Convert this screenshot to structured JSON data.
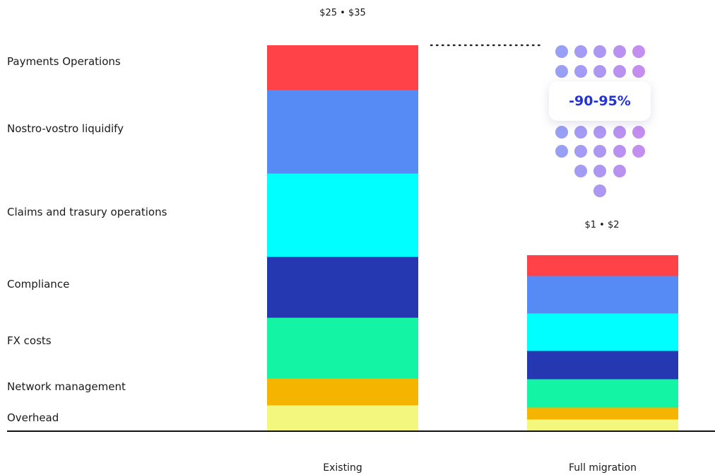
{
  "chart_data": {
    "type": "bar",
    "stacked": true,
    "categories": [
      "Existing",
      "Full migration"
    ],
    "segment_labels": [
      "Payments Operations",
      "Nostro-vostro liquidify",
      "Claims and trasury operations",
      "Compliance",
      "FX costs",
      "Network management",
      "Overhead"
    ],
    "series": [
      {
        "name": "Overhead",
        "color": "#f3f77e",
        "values": [
          37,
          17
        ]
      },
      {
        "name": "Network management",
        "color": "#f4b400",
        "values": [
          38,
          17
        ]
      },
      {
        "name": "FX costs",
        "color": "#13f5a5",
        "values": [
          86,
          40
        ]
      },
      {
        "name": "Compliance",
        "color": "#2637b2",
        "values": [
          86,
          40
        ]
      },
      {
        "name": "Claims and trasury operations",
        "color": "#00ffff",
        "values": [
          118,
          53
        ]
      },
      {
        "name": "Nostro-vostro liquidify",
        "color": "#568bf5",
        "values": [
          118,
          53
        ]
      },
      {
        "name": "Payments Operations",
        "color": "#ff4148",
        "values": [
          63,
          29
        ]
      }
    ],
    "value_labels": [
      "$25 • $35",
      "$1 • $2"
    ],
    "annotation": "-90-95%",
    "grid": false,
    "legend": "none"
  }
}
